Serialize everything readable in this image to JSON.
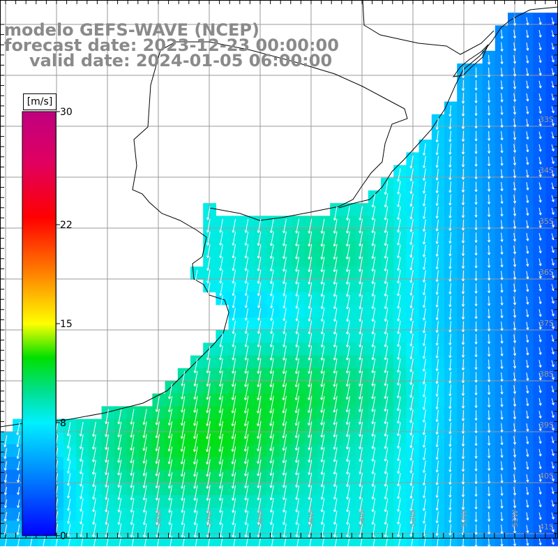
{
  "header": {
    "line1": "modelo GEFS-WAVE (NCEP)",
    "line2": "forecast date: 2023-12-23 00:00:00",
    "line3": "valid date: 2024-01-05 06:00:00"
  },
  "colorbar": {
    "unit": "[m/s]",
    "ticks": [
      {
        "value": 30,
        "label": "30"
      },
      {
        "value": 22,
        "label": "22"
      },
      {
        "value": 15,
        "label": "15"
      },
      {
        "value": 8,
        "label": "8"
      },
      {
        "value": 0,
        "label": "0"
      }
    ],
    "min": 0,
    "max": 30
  },
  "map": {
    "lat_labels": [
      "33S",
      "34S",
      "35S",
      "36S",
      "37S",
      "38S",
      "39S",
      "40S",
      "41S"
    ],
    "lon_labels": [
      "58W",
      "57W",
      "56W",
      "55W",
      "54W",
      "53W",
      "52W",
      "51W"
    ],
    "lon_range": [
      -61,
      -50
    ],
    "lat_range": [
      -31,
      -41.5
    ],
    "colors": {
      "land": "#ffffff",
      "grid": "#9a9a9a",
      "arrows": "#ffffff",
      "title": "#8a8a8a"
    }
  }
}
